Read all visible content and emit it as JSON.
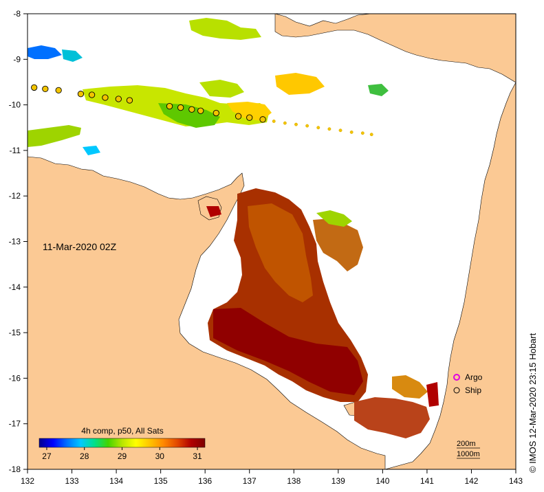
{
  "map": {
    "date_label": "11-Mar-2020 02Z",
    "colorbar": {
      "title": "4h comp, p50, All Sats",
      "ticks": [
        "27",
        "28",
        "29",
        "30",
        "31"
      ],
      "range": [
        26.8,
        31.2
      ],
      "colors": [
        "#00008f",
        "#0000ff",
        "#0070ff",
        "#00c8ff",
        "#00e08a",
        "#45d400",
        "#b8e600",
        "#ffff00",
        "#ffc400",
        "#ff8800",
        "#e24800",
        "#b00000",
        "#7d0000"
      ]
    },
    "x_axis": {
      "ticks": [
        "132",
        "133",
        "134",
        "135",
        "136",
        "137",
        "138",
        "139",
        "140",
        "141",
        "142",
        "143"
      ]
    },
    "y_axis": {
      "ticks": [
        "-8",
        "-9",
        "-10",
        "-11",
        "-12",
        "-13",
        "-14",
        "-15",
        "-16",
        "-17",
        "-18"
      ]
    },
    "legend": {
      "argo_label": "Argo",
      "ship_label": "Ship"
    },
    "scale": {
      "label_200m": "200m",
      "label_1000m": "1000m"
    },
    "credit": "© IMOS 12-Mar-2020 23:15 Hobart",
    "ship_track": [
      {
        "lon": 132.15,
        "lat": -9.62,
        "size": "large"
      },
      {
        "lon": 132.4,
        "lat": -9.65,
        "size": "large"
      },
      {
        "lon": 132.7,
        "lat": -9.68,
        "size": "large"
      },
      {
        "lon": 133.2,
        "lat": -9.76,
        "size": "large"
      },
      {
        "lon": 133.45,
        "lat": -9.78,
        "size": "large"
      },
      {
        "lon": 133.75,
        "lat": -9.84,
        "size": "large"
      },
      {
        "lon": 134.05,
        "lat": -9.87,
        "size": "large"
      },
      {
        "lon": 134.3,
        "lat": -9.9,
        "size": "large"
      },
      {
        "lon": 135.2,
        "lat": -10.03,
        "size": "large"
      },
      {
        "lon": 135.45,
        "lat": -10.06,
        "size": "large"
      },
      {
        "lon": 135.7,
        "lat": -10.1,
        "size": "large"
      },
      {
        "lon": 135.9,
        "lat": -10.13,
        "size": "large"
      },
      {
        "lon": 136.25,
        "lat": -10.18,
        "size": "large"
      },
      {
        "lon": 136.75,
        "lat": -10.25,
        "size": "large"
      },
      {
        "lon": 137.0,
        "lat": -10.28,
        "size": "large"
      },
      {
        "lon": 137.3,
        "lat": -10.32,
        "size": "large"
      },
      {
        "lon": 137.55,
        "lat": -10.36,
        "size": "small"
      },
      {
        "lon": 137.8,
        "lat": -10.4,
        "size": "small"
      },
      {
        "lon": 138.05,
        "lat": -10.43,
        "size": "small"
      },
      {
        "lon": 138.3,
        "lat": -10.46,
        "size": "small"
      },
      {
        "lon": 138.55,
        "lat": -10.5,
        "size": "small"
      },
      {
        "lon": 138.8,
        "lat": -10.53,
        "size": "small"
      },
      {
        "lon": 139.05,
        "lat": -10.56,
        "size": "small"
      },
      {
        "lon": 139.3,
        "lat": -10.6,
        "size": "small"
      },
      {
        "lon": 139.55,
        "lat": -10.62,
        "size": "small"
      },
      {
        "lon": 139.75,
        "lat": -10.65,
        "size": "small"
      }
    ],
    "colors": {
      "land": "#fbc994",
      "ocean": "#ffffff",
      "ship_fill": "#f2c400",
      "argo": "#e000e0"
    }
  }
}
